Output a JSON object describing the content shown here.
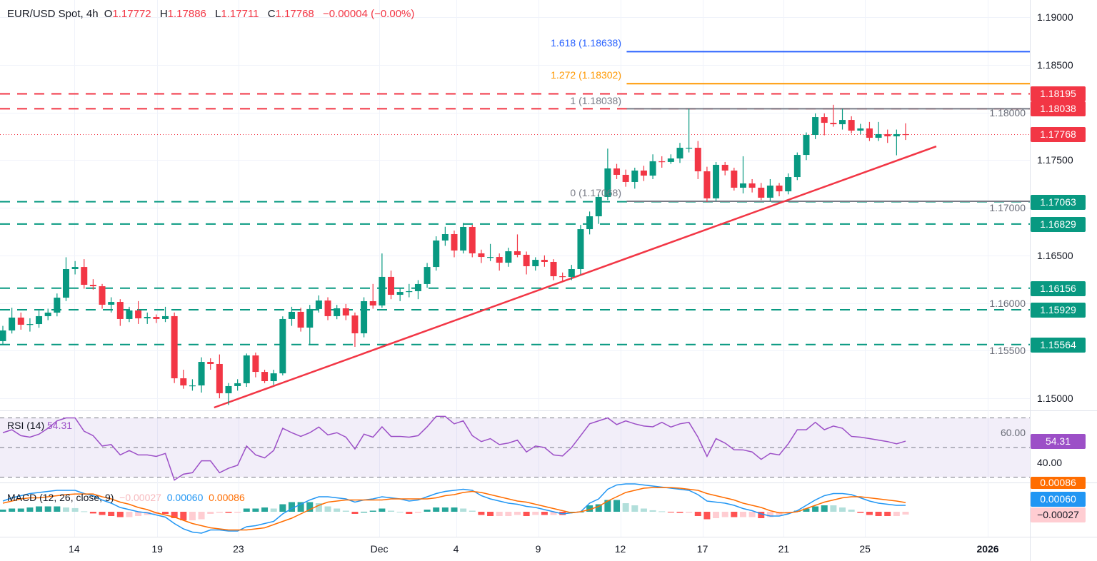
{
  "header": {
    "symbol": "EUR/USD Spot, 4h",
    "o_label": "O",
    "o": "1.17772",
    "h_label": "H",
    "h": "1.17886",
    "l_label": "L",
    "l": "1.17711",
    "c_label": "C",
    "c": "1.17768",
    "change": "−0.00004 (−0.00%)"
  },
  "colors": {
    "up": "#089981",
    "down": "#f23645",
    "fib_1618": "#2962ff",
    "fib_1272": "#ff9800",
    "fib_gray": "#787b86",
    "trendline": "#f23645",
    "rsi": "#9c4fc7",
    "macd": "#2196f3",
    "signal": "#ff6d00"
  },
  "chart_data": [
    {
      "type": "candlestick",
      "title": "EUR/USD Spot, 4h",
      "ylim": [
        1.1475,
        1.1915
      ],
      "y_ticks": [
        "1.15000",
        "1.15500",
        "1.16000",
        "1.16500",
        "1.17000",
        "1.17500",
        "1.18000",
        "1.18500",
        "1.19000"
      ],
      "x_ticks": [
        {
          "label": "14",
          "index": 7.9
        },
        {
          "label": "19",
          "index": 17.1
        },
        {
          "label": "23",
          "index": 26.1
        },
        {
          "label": "Dec",
          "index": 41.7
        },
        {
          "label": "4",
          "index": 50.2
        },
        {
          "label": "9",
          "index": 59.3
        },
        {
          "label": "12",
          "index": 68.4
        },
        {
          "label": "17",
          "index": 77.5
        },
        {
          "label": "21",
          "index": 86.5
        },
        {
          "label": "25",
          "index": 95.5
        },
        {
          "label": "2026",
          "index": 109.1
        }
      ],
      "candles": [
        [
          1.156,
          1.1576,
          1.1556,
          1.15712
        ],
        [
          1.15712,
          1.1595,
          1.1568,
          1.15847
        ],
        [
          1.15847,
          1.159,
          1.1572,
          1.15772
        ],
        [
          1.15772,
          1.1584,
          1.157,
          1.15779
        ],
        [
          1.15779,
          1.1592,
          1.1574,
          1.15862
        ],
        [
          1.15862,
          1.1594,
          1.1582,
          1.15899
        ],
        [
          1.15899,
          1.161,
          1.1586,
          1.16056
        ],
        [
          1.16056,
          1.1648,
          1.1602,
          1.16356
        ],
        [
          1.16356,
          1.1644,
          1.163,
          1.16378
        ],
        [
          1.16378,
          1.1646,
          1.1615,
          1.16191
        ],
        [
          1.16191,
          1.1625,
          1.1614,
          1.16176
        ],
        [
          1.16176,
          1.162,
          1.1594,
          1.15982
        ],
        [
          1.15982,
          1.1606,
          1.159,
          1.16011
        ],
        [
          1.16011,
          1.1604,
          1.1576,
          1.15832
        ],
        [
          1.15832,
          1.1596,
          1.158,
          1.15922
        ],
        [
          1.15922,
          1.1602,
          1.1578,
          1.15839
        ],
        [
          1.15839,
          1.159,
          1.1578,
          1.15854
        ],
        [
          1.15854,
          1.1588,
          1.1579,
          1.15832
        ],
        [
          1.15832,
          1.1596,
          1.158,
          1.15862
        ],
        [
          1.15862,
          1.159,
          1.1516,
          1.1521
        ],
        [
          1.1521,
          1.153,
          1.151,
          1.15135
        ],
        [
          1.15135,
          1.152,
          1.1508,
          1.15135
        ],
        [
          1.15135,
          1.1543,
          1.1506,
          1.15382
        ],
        [
          1.15382,
          1.1542,
          1.153,
          1.1536
        ],
        [
          1.1536,
          1.1546,
          1.15,
          1.15053
        ],
        [
          1.15053,
          1.1516,
          1.1493,
          1.15128
        ],
        [
          1.15128,
          1.152,
          1.1508,
          1.15158
        ],
        [
          1.15158,
          1.1547,
          1.1512,
          1.1545
        ],
        [
          1.1545,
          1.1548,
          1.1522,
          1.15277
        ],
        [
          1.15277,
          1.153,
          1.1516,
          1.1518
        ],
        [
          1.1518,
          1.153,
          1.1514,
          1.15262
        ],
        [
          1.15262,
          1.1586,
          1.1524,
          1.15832
        ],
        [
          1.15832,
          1.1596,
          1.1576,
          1.15907
        ],
        [
          1.15907,
          1.1595,
          1.157,
          1.15742
        ],
        [
          1.15742,
          1.1598,
          1.1556,
          1.15937
        ],
        [
          1.15937,
          1.1608,
          1.159,
          1.16026
        ],
        [
          1.16026,
          1.1606,
          1.1582,
          1.15862
        ],
        [
          1.15862,
          1.1598,
          1.1583,
          1.15944
        ],
        [
          1.15944,
          1.1599,
          1.1582,
          1.15869
        ],
        [
          1.15869,
          1.159,
          1.1554,
          1.15682
        ],
        [
          1.15682,
          1.1606,
          1.1564,
          1.16019
        ],
        [
          1.16019,
          1.162,
          1.1594,
          1.15974
        ],
        [
          1.15974,
          1.1652,
          1.1595,
          1.16274
        ],
        [
          1.16274,
          1.1634,
          1.1604,
          1.16086
        ],
        [
          1.16086,
          1.1616,
          1.1602,
          1.16116
        ],
        [
          1.16116,
          1.162,
          1.1606,
          1.16124
        ],
        [
          1.16124,
          1.1624,
          1.1604,
          1.16199
        ],
        [
          1.16199,
          1.1642,
          1.1616,
          1.16378
        ],
        [
          1.16378,
          1.167,
          1.1634,
          1.16656
        ],
        [
          1.16656,
          1.168,
          1.166,
          1.16723
        ],
        [
          1.16723,
          1.1676,
          1.1648,
          1.16551
        ],
        [
          1.16551,
          1.1684,
          1.1652,
          1.16798
        ],
        [
          1.16798,
          1.1682,
          1.1648,
          1.16521
        ],
        [
          1.16521,
          1.1656,
          1.1642,
          1.16483
        ],
        [
          1.16483,
          1.1662,
          1.1644,
          1.16483
        ],
        [
          1.16483,
          1.1652,
          1.1634,
          1.16423
        ],
        [
          1.16423,
          1.1658,
          1.1638,
          1.16543
        ],
        [
          1.16543,
          1.1672,
          1.1648,
          1.16506
        ],
        [
          1.16506,
          1.1654,
          1.163,
          1.16386
        ],
        [
          1.16386,
          1.1648,
          1.1634,
          1.16453
        ],
        [
          1.16453,
          1.165,
          1.1638,
          1.16431
        ],
        [
          1.16431,
          1.1646,
          1.1624,
          1.16281
        ],
        [
          1.16281,
          1.1632,
          1.1622,
          1.16274
        ],
        [
          1.16274,
          1.164,
          1.1624,
          1.16356
        ],
        [
          1.16356,
          1.1682,
          1.163,
          1.16775
        ],
        [
          1.16775,
          1.1696,
          1.1672,
          1.1691
        ],
        [
          1.1691,
          1.1714,
          1.1683,
          1.17113
        ],
        [
          1.17113,
          1.1762,
          1.1708,
          1.17412
        ],
        [
          1.17412,
          1.1746,
          1.173,
          1.17345
        ],
        [
          1.17345,
          1.174,
          1.1722,
          1.1727
        ],
        [
          1.1727,
          1.1742,
          1.172,
          1.1739
        ],
        [
          1.1739,
          1.1744,
          1.1728,
          1.17337
        ],
        [
          1.17337,
          1.1756,
          1.173,
          1.17487
        ],
        [
          1.17487,
          1.1754,
          1.1742,
          1.1748
        ],
        [
          1.1748,
          1.1756,
          1.1746,
          1.17517
        ],
        [
          1.17517,
          1.1768,
          1.1747,
          1.17629
        ],
        [
          1.17629,
          1.18038,
          1.1758,
          1.17629
        ],
        [
          1.17629,
          1.177,
          1.173,
          1.17382
        ],
        [
          1.17382,
          1.1743,
          1.1706,
          1.17098
        ],
        [
          1.17098,
          1.1748,
          1.17068,
          1.1745
        ],
        [
          1.1745,
          1.1748,
          1.1734,
          1.1739
        ],
        [
          1.1739,
          1.1742,
          1.1718,
          1.1721
        ],
        [
          1.1721,
          1.1754,
          1.1715,
          1.17255
        ],
        [
          1.17255,
          1.173,
          1.1716,
          1.1721
        ],
        [
          1.1721,
          1.1726,
          1.1708,
          1.17105
        ],
        [
          1.17105,
          1.173,
          1.17068,
          1.17232
        ],
        [
          1.17232,
          1.1726,
          1.1712,
          1.17172
        ],
        [
          1.17172,
          1.1736,
          1.1714,
          1.17322
        ],
        [
          1.17322,
          1.1758,
          1.1729,
          1.17554
        ],
        [
          1.17554,
          1.1779,
          1.175,
          1.17764
        ],
        [
          1.17764,
          1.1799,
          1.1772,
          1.17951
        ],
        [
          1.17951,
          1.1799,
          1.1776,
          1.17891
        ],
        [
          1.17891,
          1.1808,
          1.1785,
          1.17876
        ],
        [
          1.17876,
          1.18038,
          1.1782,
          1.17921
        ],
        [
          1.17921,
          1.1796,
          1.1778,
          1.17809
        ],
        [
          1.17809,
          1.1788,
          1.1777,
          1.17832
        ],
        [
          1.17832,
          1.179,
          1.177,
          1.17734
        ],
        [
          1.17734,
          1.179,
          1.177,
          1.17772
        ],
        [
          1.17772,
          1.1782,
          1.1768,
          1.17749
        ],
        [
          1.17749,
          1.1782,
          1.1755,
          1.17772
        ],
        [
          1.17772,
          1.17886,
          1.17711,
          1.17768
        ]
      ],
      "current_price": {
        "value": 1.17768,
        "label": "1.17768"
      },
      "horizontal_levels": [
        {
          "value": 1.18195,
          "label": "1.18195",
          "color": "#f23645",
          "style": "dashed"
        },
        {
          "value": 1.18038,
          "label": "1.18038",
          "color": "#f23645",
          "style": "dashed"
        },
        {
          "value": 1.17063,
          "label": "1.17063",
          "color": "#089981",
          "style": "dashed"
        },
        {
          "value": 1.16829,
          "label": "1.16829",
          "color": "#089981",
          "style": "dashed"
        },
        {
          "value": 1.16156,
          "label": "1.16156",
          "color": "#089981",
          "style": "dashed"
        },
        {
          "value": 1.15929,
          "label": "1.15929",
          "color": "#089981",
          "style": "dashed"
        },
        {
          "value": 1.15564,
          "label": "1.15564",
          "color": "#089981",
          "style": "dashed"
        }
      ],
      "fibonacci": {
        "start_index": 69.1,
        "levels": [
          {
            "ratio": "1.618",
            "value": 1.18638,
            "label": "1.618 (1.18638)",
            "color": "#2962ff"
          },
          {
            "ratio": "1.272",
            "value": 1.18302,
            "label": "1.272 (1.18302)",
            "color": "#ff9800"
          },
          {
            "ratio": "1",
            "value": 1.18038,
            "label": "1 (1.18038)",
            "color": "#787b86"
          },
          {
            "ratio": "0",
            "value": 1.17068,
            "label": "0 (1.17068)",
            "color": "#787b86"
          }
        ]
      },
      "trendline": {
        "from": {
          "index": 23.4,
          "value": 1.14903
        },
        "to": {
          "index": 103.4,
          "value": 1.17644
        }
      }
    },
    {
      "type": "line",
      "title": "RSI (14)",
      "value_label": "54.31",
      "ylim": [
        30,
        70
      ],
      "levels": [
        70,
        50,
        30
      ],
      "y_ticks": [
        "60.00",
        "40.00"
      ],
      "values": [
        60,
        62,
        58,
        57,
        59,
        63,
        68,
        70,
        70,
        61,
        58,
        51,
        52,
        45,
        48,
        45,
        45,
        44,
        46,
        28,
        32,
        33,
        41,
        41,
        33,
        36,
        38,
        51,
        45,
        43,
        48,
        63,
        60,
        57.5,
        60,
        63.8,
        58.5,
        60,
        57,
        49,
        59,
        57,
        64,
        57.5,
        57.5,
        57,
        58,
        64,
        71,
        71,
        66,
        68,
        58,
        54,
        56,
        52,
        53,
        55,
        47,
        51,
        50,
        45,
        44.3,
        50,
        58,
        66,
        68,
        70,
        65.5,
        68,
        66,
        64.5,
        64,
        67,
        63.8,
        66,
        67,
        57,
        44,
        56,
        53,
        48.5,
        48.4,
        47,
        42,
        46,
        45,
        52.5,
        62,
        62,
        67,
        62,
        64.5,
        63,
        57.5,
        57,
        56,
        55,
        54,
        52.5,
        54.31
      ]
    },
    {
      "type": "line",
      "title": "MACD (12, 26, close, 9)",
      "hist_label": "−0.00027",
      "macd_label": "0.00060",
      "signal_label": "0.00086",
      "macd": [
        0.001,
        0.0013,
        0.0015,
        0.0017,
        0.0018,
        0.0019,
        0.002,
        0.002,
        0.002,
        0.0017,
        0.0015,
        0.0011,
        0.0008,
        0.0004,
        0.0002,
        0.0,
        -0.0001,
        -0.0003,
        -0.0005,
        -0.0011,
        -0.0016,
        -0.0019,
        -0.002,
        -0.0017,
        -0.0017,
        -0.0018,
        -0.0018,
        -0.0014,
        -0.0013,
        -0.0011,
        -0.0009,
        -0.0002,
        0.0003,
        0.0007,
        0.0011,
        0.0014,
        0.0014,
        0.0013,
        0.0012,
        0.0009,
        0.0011,
        0.0012,
        0.0014,
        0.0013,
        0.0012,
        0.001,
        0.0011,
        0.0014,
        0.0017,
        0.0019,
        0.002,
        0.0021,
        0.002,
        0.0015,
        0.0012,
        0.001,
        0.0008,
        0.0007,
        0.0005,
        0.0004,
        0.0002,
        0.0,
        -0.0002,
        -0.0001,
        0.0,
        0.0008,
        0.0012,
        0.0021,
        0.0025,
        0.0026,
        0.0026,
        0.0025,
        0.0024,
        0.0023,
        0.0022,
        0.0021,
        0.002,
        0.0016,
        0.001,
        0.0009,
        0.0008,
        0.0006,
        0.0003,
        0.0001,
        -0.0002,
        -0.0004,
        -0.0004,
        -0.0002,
        0.0001,
        0.0006,
        0.0011,
        0.0015,
        0.0017,
        0.0017,
        0.0016,
        0.0013,
        0.001,
        0.0008,
        0.0007,
        0.0006,
        0.0006
      ],
      "signal": [
        0.0008,
        0.001,
        0.0012,
        0.0013,
        0.0013,
        0.0014,
        0.0015,
        0.0016,
        0.00166,
        0.00166,
        0.00166,
        0.0014,
        0.0012,
        0.0009,
        0.0007,
        0.0004,
        0.0002,
        -0.0001,
        -0.0003,
        -0.0005,
        -0.0008,
        -0.0011,
        -0.0013,
        -0.0015,
        -0.0016,
        -0.0017,
        -0.0017,
        -0.0017,
        -0.0016,
        -0.0015,
        -0.0012,
        -0.0009,
        -0.0006,
        -0.0002,
        0.0002,
        0.0006,
        0.0009,
        0.001,
        0.0011,
        0.0011,
        0.0011,
        0.0011,
        0.0011,
        0.0012,
        0.0012,
        0.0012,
        0.0012,
        0.0012,
        0.0013,
        0.0015,
        0.0016,
        0.0018,
        0.0019,
        0.0018,
        0.0016,
        0.0014,
        0.0012,
        0.001,
        0.0009,
        0.0007,
        0.0005,
        0.0003,
        0.0001,
        -0.0001,
        0.0,
        0.0002,
        0.0005,
        0.001,
        0.0014,
        0.0018,
        0.002,
        0.0022,
        0.00226,
        0.00226,
        0.00226,
        0.0022,
        0.0021,
        0.002,
        0.0017,
        0.0015,
        0.0013,
        0.0011,
        0.0008,
        0.0006,
        0.0004,
        0.0001,
        -0.0001,
        -0.0001,
        0.0,
        0.0003,
        0.0006,
        0.0009,
        0.0011,
        0.0013,
        0.0014,
        0.0014,
        0.0013,
        0.0012,
        0.0011,
        0.001,
        0.00086
      ]
    }
  ]
}
